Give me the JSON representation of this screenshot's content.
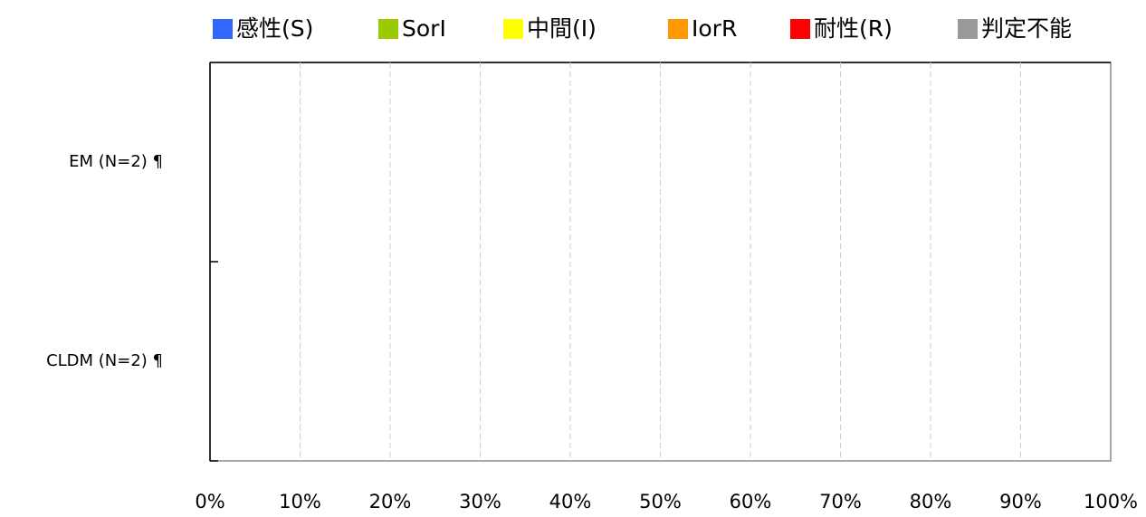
{
  "chart_data": {
    "type": "stacked_barh",
    "categories": [
      "EM (N=2) ¶",
      "CLDM (N=2) ¶"
    ],
    "series": [
      {
        "name": "感性(S)",
        "color": "#3366ff",
        "values": [
          0,
          0
        ]
      },
      {
        "name": "SorI",
        "color": "#99cc00",
        "values": [
          0,
          0
        ]
      },
      {
        "name": "中間(I)",
        "color": "#ffff00",
        "values": [
          0,
          0
        ]
      },
      {
        "name": "IorR",
        "color": "#ff9900",
        "values": [
          0,
          0
        ]
      },
      {
        "name": "耐性(R)",
        "color": "#ff0000",
        "values": [
          0,
          0
        ]
      },
      {
        "name": "判定不能",
        "color": "#999999",
        "values": [
          0,
          0
        ]
      }
    ],
    "xlim": [
      0,
      100
    ],
    "xticks": [
      {
        "value": 0,
        "label": "0%"
      },
      {
        "value": 10,
        "label": "10%"
      },
      {
        "value": 20,
        "label": "20%"
      },
      {
        "value": 30,
        "label": "30%"
      },
      {
        "value": 40,
        "label": "40%"
      },
      {
        "value": 50,
        "label": "50%"
      },
      {
        "value": 60,
        "label": "60%"
      },
      {
        "value": 70,
        "label": "70%"
      },
      {
        "value": 80,
        "label": "80%"
      },
      {
        "value": 90,
        "label": "90%"
      },
      {
        "value": 100,
        "label": "100%"
      }
    ],
    "grid": true,
    "legend": "top"
  }
}
